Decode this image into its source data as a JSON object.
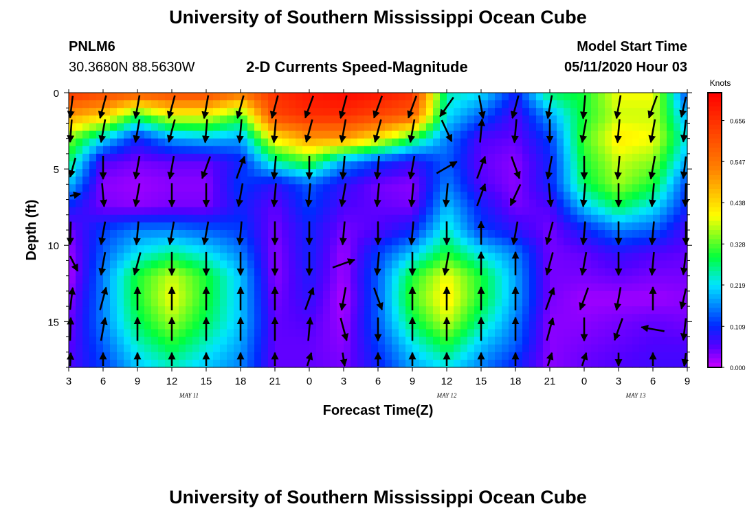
{
  "page": {
    "title_top": "University of Southern Mississippi Ocean Cube",
    "title_bottom": "University of Southern Mississippi Ocean Cube",
    "station_id": "PNLM6",
    "station_coords": "30.3680N 88.5630W",
    "plot_title": "2-D Currents Speed-Magnitude",
    "model_start_label": "Model Start Time",
    "model_start_value": "05/11/2020 Hour 03"
  },
  "chart_data": {
    "type": "heatmap",
    "title": "2-D Currents Speed-Magnitude",
    "xlabel": "Forecast Time(Z)",
    "ylabel": "Depth (ft)",
    "x_ticks": [
      "3",
      "6",
      "9",
      "12",
      "15",
      "18",
      "21",
      "0",
      "3",
      "6",
      "9",
      "12",
      "15",
      "18",
      "21",
      "0",
      "3",
      "6",
      "9"
    ],
    "x_range_hours": [
      0,
      54
    ],
    "date_labels": [
      {
        "text": "MAY 11",
        "hour": 10.5
      },
      {
        "text": "MAY 12",
        "hour": 33
      },
      {
        "text": "MAY 13",
        "hour": 49.5
      }
    ],
    "y_ticks": [
      0,
      5,
      10,
      15
    ],
    "ylim": [
      0,
      18
    ],
    "colorbar": {
      "unit": "Knots",
      "min": 0.0,
      "max": 0.73,
      "tick_labels": [
        "0.656",
        "0.547",
        "0.438",
        "0.328",
        "0.219",
        "0.109",
        "0.000"
      ],
      "tick_values": [
        0.656,
        0.547,
        0.438,
        0.328,
        0.219,
        0.109,
        0.0
      ]
    },
    "speed_columns_hours": [
      0,
      3,
      6,
      9,
      12,
      15,
      18,
      21,
      24,
      27,
      30,
      33,
      36,
      39,
      42,
      45,
      48,
      51,
      54
    ],
    "speed_rows_depth_ft": [
      0,
      1.5,
      3,
      4.5,
      6,
      7.5,
      9,
      10.5,
      12,
      13.5,
      15,
      16.5,
      18
    ],
    "speed_knots": [
      [
        0.65,
        0.62,
        0.6,
        0.62,
        0.62,
        0.55,
        0.66,
        0.7,
        0.72,
        0.7,
        0.66,
        0.25,
        0.22,
        0.1,
        0.28,
        0.3,
        0.4,
        0.4,
        0.12
      ],
      [
        0.5,
        0.45,
        0.3,
        0.4,
        0.4,
        0.32,
        0.62,
        0.66,
        0.66,
        0.62,
        0.58,
        0.22,
        0.14,
        0.06,
        0.18,
        0.3,
        0.38,
        0.38,
        0.18
      ],
      [
        0.35,
        0.22,
        0.1,
        0.18,
        0.2,
        0.18,
        0.42,
        0.5,
        0.5,
        0.42,
        0.3,
        0.16,
        0.06,
        0.05,
        0.12,
        0.32,
        0.42,
        0.4,
        0.22
      ],
      [
        0.28,
        0.06,
        0.04,
        0.05,
        0.05,
        0.1,
        0.26,
        0.32,
        0.18,
        0.12,
        0.08,
        0.14,
        0.05,
        0.03,
        0.1,
        0.3,
        0.38,
        0.35,
        0.18
      ],
      [
        0.2,
        0.03,
        0.02,
        0.03,
        0.03,
        0.12,
        0.08,
        0.14,
        0.08,
        0.04,
        0.03,
        0.16,
        0.06,
        0.03,
        0.1,
        0.28,
        0.36,
        0.3,
        0.12
      ],
      [
        0.1,
        0.04,
        0.03,
        0.04,
        0.04,
        0.1,
        0.05,
        0.12,
        0.06,
        0.05,
        0.04,
        0.2,
        0.1,
        0.04,
        0.06,
        0.2,
        0.28,
        0.22,
        0.1
      ],
      [
        0.04,
        0.12,
        0.16,
        0.16,
        0.14,
        0.12,
        0.04,
        0.1,
        0.04,
        0.06,
        0.1,
        0.24,
        0.12,
        0.08,
        0.04,
        0.1,
        0.16,
        0.14,
        0.06
      ],
      [
        0.02,
        0.14,
        0.22,
        0.26,
        0.22,
        0.16,
        0.03,
        0.1,
        0.02,
        0.12,
        0.2,
        0.3,
        0.22,
        0.16,
        0.04,
        0.05,
        0.08,
        0.06,
        0.05
      ],
      [
        0.01,
        0.16,
        0.3,
        0.38,
        0.3,
        0.2,
        0.03,
        0.09,
        0.02,
        0.14,
        0.3,
        0.4,
        0.3,
        0.18,
        0.04,
        0.04,
        0.05,
        0.04,
        0.04
      ],
      [
        0.03,
        0.16,
        0.3,
        0.4,
        0.3,
        0.2,
        0.04,
        0.08,
        0.01,
        0.14,
        0.32,
        0.42,
        0.3,
        0.18,
        0.04,
        0.02,
        0.02,
        0.02,
        0.03
      ],
      [
        0.04,
        0.16,
        0.28,
        0.36,
        0.28,
        0.2,
        0.05,
        0.06,
        0.02,
        0.14,
        0.28,
        0.38,
        0.26,
        0.16,
        0.03,
        0.03,
        0.04,
        0.05,
        0.04
      ],
      [
        0.05,
        0.14,
        0.24,
        0.3,
        0.24,
        0.18,
        0.05,
        0.05,
        0.03,
        0.12,
        0.22,
        0.3,
        0.2,
        0.14,
        0.03,
        0.04,
        0.05,
        0.06,
        0.06
      ],
      [
        0.06,
        0.12,
        0.2,
        0.24,
        0.2,
        0.16,
        0.05,
        0.05,
        0.04,
        0.1,
        0.18,
        0.22,
        0.16,
        0.1,
        0.03,
        0.05,
        0.06,
        0.07,
        0.07
      ]
    ],
    "vector_grid_hours": [
      0,
      3,
      6,
      9,
      12,
      15,
      18,
      21,
      24,
      27,
      30,
      33,
      36,
      39,
      42,
      45,
      48,
      51,
      54
    ],
    "vector_grid_depths_ft": [
      0.3,
      2.5,
      4.9,
      6.7,
      9.2,
      11.2,
      13.5,
      15.5,
      17.8
    ],
    "vector_angles_deg_clockwise_from_north": [
      [
        200,
        195,
        190,
        195,
        190,
        195,
        195,
        200,
        195,
        200,
        200,
        215,
        170,
        195,
        190,
        185,
        190,
        200,
        210
      ],
      [
        195,
        190,
        190,
        195,
        185,
        185,
        185,
        195,
        190,
        195,
        190,
        155,
        5,
        185,
        180,
        190,
        185,
        190,
        200
      ],
      [
        215,
        180,
        190,
        190,
        200,
        20,
        185,
        180,
        185,
        185,
        190,
        60,
        20,
        160,
        190,
        180,
        185,
        190,
        200
      ],
      [
        85,
        175,
        190,
        180,
        180,
        190,
        185,
        185,
        190,
        185,
        185,
        185,
        20,
        205,
        175,
        185,
        180,
        185,
        190
      ],
      [
        190,
        190,
        185,
        190,
        190,
        185,
        180,
        180,
        185,
        180,
        185,
        180,
        0,
        190,
        195,
        185,
        180,
        185,
        185
      ],
      [
        130,
        190,
        195,
        180,
        180,
        180,
        180,
        180,
        70,
        185,
        180,
        190,
        0,
        0,
        195,
        190,
        180,
        185,
        200
      ],
      [
        20,
        15,
        0,
        0,
        0,
        0,
        0,
        20,
        190,
        160,
        0,
        0,
        0,
        0,
        20,
        200,
        190,
        0,
        210
      ],
      [
        10,
        10,
        0,
        0,
        0,
        0,
        0,
        5,
        165,
        180,
        0,
        0,
        0,
        0,
        15,
        180,
        200,
        280,
        200
      ],
      [
        10,
        0,
        0,
        0,
        0,
        0,
        0,
        10,
        175,
        0,
        0,
        0,
        0,
        0,
        10,
        10,
        180,
        0,
        195
      ]
    ],
    "vector_length_scale_note": "unit-direction arrows"
  }
}
